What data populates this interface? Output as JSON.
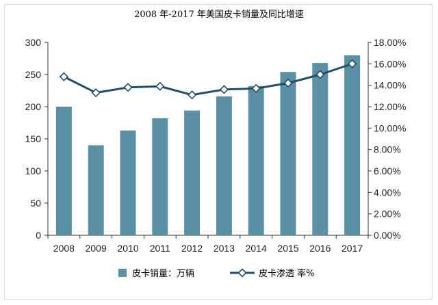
{
  "chart_data": {
    "type": "bar+line",
    "title": "2008 年-2017 年美国皮卡销量及同比增速",
    "categories": [
      "2008",
      "2009",
      "2010",
      "2011",
      "2012",
      "2013",
      "2014",
      "2015",
      "2016",
      "2017"
    ],
    "series": [
      {
        "name": "皮卡销量：万辆",
        "type": "bar",
        "axis": "left",
        "color": "#5b8fa3",
        "values": [
          200,
          140,
          163,
          182,
          194,
          216,
          232,
          254,
          268,
          280
        ]
      },
      {
        "name": "皮卡渗透 率%",
        "type": "line",
        "axis": "right",
        "color": "#1f4e6b",
        "values": [
          14.8,
          13.3,
          13.8,
          13.9,
          13.1,
          13.6,
          13.7,
          14.2,
          15.0,
          16.0
        ]
      }
    ],
    "y_left": {
      "min": 0,
      "max": 300,
      "ticks": [
        "0",
        "50",
        "100",
        "150",
        "200",
        "250",
        "300"
      ],
      "tick_values": [
        0,
        50,
        100,
        150,
        200,
        250,
        300
      ]
    },
    "y_right": {
      "min": 0,
      "max": 18,
      "ticks": [
        "0.00%",
        "2.00%",
        "4.00%",
        "6.00%",
        "8.00%",
        "10.00%",
        "12.00%",
        "14.00%",
        "16.00%",
        "18.00%"
      ],
      "tick_values": [
        0,
        2,
        4,
        6,
        8,
        10,
        12,
        14,
        16,
        18
      ]
    },
    "grid": false,
    "legend_position": "bottom"
  }
}
